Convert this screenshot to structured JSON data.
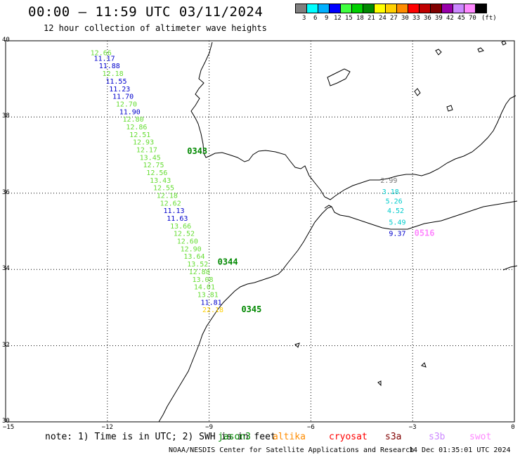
{
  "header": {
    "title": "00:00 – 11:59 UTC 03/11/2024",
    "subtitle": "12 hour collection of altimeter wave heights"
  },
  "colorbar": {
    "colors": [
      "#7f7f7f",
      "#00ffff",
      "#00b0ff",
      "#0000ff",
      "#40ff40",
      "#00d000",
      "#008800",
      "#ffff00",
      "#ffd000",
      "#ff8c00",
      "#ff0000",
      "#c00000",
      "#800000",
      "#9900aa",
      "#cc88ff",
      "#ff88ff",
      "#000000"
    ],
    "labels": [
      "3",
      "6",
      "9",
      "12",
      "15",
      "18",
      "21",
      "24",
      "27",
      "30",
      "33",
      "36",
      "39",
      "42",
      "45",
      "70",
      "(ft)"
    ]
  },
  "axes": {
    "lat_labels": [
      "40",
      "38",
      "36",
      "34",
      "32",
      "30"
    ],
    "lon_labels": [
      "−15",
      "−12",
      "−9",
      "−6",
      "−3",
      "0"
    ],
    "lat_range": [
      30,
      40
    ],
    "lon_range": [
      -15,
      0
    ],
    "grid": "dotted"
  },
  "track1": {
    "color": "#66dd33",
    "points": [
      {
        "text": "12.66",
        "lat": 39.7,
        "lon": -12.5,
        "color": "#66dd33"
      },
      {
        "text": "11.17",
        "lat": 39.55,
        "lon": -12.4,
        "color": "#0000cc"
      },
      {
        "text": "11.88",
        "lat": 39.35,
        "lon": -12.25,
        "color": "#0000cc"
      },
      {
        "text": "12.18",
        "lat": 39.15,
        "lon": -12.15,
        "color": "#66dd33"
      },
      {
        "text": "11.55",
        "lat": 38.95,
        "lon": -12.05,
        "color": "#0000cc"
      },
      {
        "text": "11.23",
        "lat": 38.75,
        "lon": -11.95,
        "color": "#0000cc"
      },
      {
        "text": "11.70",
        "lat": 38.55,
        "lon": -11.85,
        "color": "#0000cc"
      },
      {
        "text": "12.70",
        "lat": 38.35,
        "lon": -11.75,
        "color": "#66dd33"
      },
      {
        "text": "11.90",
        "lat": 38.15,
        "lon": -11.65,
        "color": "#0000cc"
      },
      {
        "text": "12.80",
        "lat": 37.95,
        "lon": -11.55,
        "color": "#66dd33"
      },
      {
        "text": "12.86",
        "lat": 37.75,
        "lon": -11.45,
        "color": "#66dd33"
      },
      {
        "text": "12.51",
        "lat": 37.55,
        "lon": -11.35,
        "color": "#66dd33"
      },
      {
        "text": "12.93",
        "lat": 37.35,
        "lon": -11.25,
        "color": "#66dd33"
      },
      {
        "text": "12.17",
        "lat": 37.15,
        "lon": -11.15,
        "color": "#66dd33"
      },
      {
        "text": "13.45",
        "lat": 36.95,
        "lon": -11.05,
        "color": "#66dd33"
      },
      {
        "text": "12.75",
        "lat": 36.75,
        "lon": -10.95,
        "color": "#66dd33"
      },
      {
        "text": "12.56",
        "lat": 36.55,
        "lon": -10.85,
        "color": "#66dd33"
      },
      {
        "text": "13.43",
        "lat": 36.35,
        "lon": -10.75,
        "color": "#66dd33"
      },
      {
        "text": "12.55",
        "lat": 36.15,
        "lon": -10.65,
        "color": "#66dd33"
      },
      {
        "text": "12.18",
        "lat": 35.95,
        "lon": -10.55,
        "color": "#66dd33"
      },
      {
        "text": "12.62",
        "lat": 35.75,
        "lon": -10.45,
        "color": "#66dd33"
      },
      {
        "text": "11.13",
        "lat": 35.55,
        "lon": -10.35,
        "color": "#0000cc"
      },
      {
        "text": "11.63",
        "lat": 35.35,
        "lon": -10.25,
        "color": "#0000cc"
      },
      {
        "text": "13.66",
        "lat": 35.15,
        "lon": -10.15,
        "color": "#66dd33"
      },
      {
        "text": "12.52",
        "lat": 34.95,
        "lon": -10.05,
        "color": "#66dd33"
      },
      {
        "text": "12.60",
        "lat": 34.75,
        "lon": -9.95,
        "color": "#66dd33"
      },
      {
        "text": "12.90",
        "lat": 34.55,
        "lon": -9.85,
        "color": "#66dd33"
      },
      {
        "text": "13.64",
        "lat": 34.35,
        "lon": -9.75,
        "color": "#66dd33"
      },
      {
        "text": "13.52",
        "lat": 34.15,
        "lon": -9.65,
        "color": "#66dd33"
      },
      {
        "text": "12.88",
        "lat": 33.95,
        "lon": -9.6,
        "color": "#66dd33"
      },
      {
        "text": "13.08",
        "lat": 33.75,
        "lon": -9.5,
        "color": "#66dd33"
      },
      {
        "text": "14.01",
        "lat": 33.55,
        "lon": -9.45,
        "color": "#66dd33"
      },
      {
        "text": "13.81",
        "lat": 33.35,
        "lon": -9.35,
        "color": "#66dd33"
      },
      {
        "text": "11.81",
        "lat": 33.15,
        "lon": -9.25,
        "color": "#0000cc"
      },
      {
        "text": "22.18",
        "lat": 32.95,
        "lon": -9.2,
        "color": "#ffd000"
      }
    ],
    "times": [
      {
        "text": "0343",
        "lat": 37.1,
        "lon": -9.65
      },
      {
        "text": "0344",
        "lat": 34.2,
        "lon": -8.75
      },
      {
        "text": "0345",
        "lat": 32.95,
        "lon": -8.05
      }
    ]
  },
  "track2": {
    "points": [
      {
        "text": "2.99",
        "lat": 36.35,
        "lon": -3.95,
        "color": "#777777"
      },
      {
        "text": "3.18",
        "lat": 36.05,
        "lon": -3.9,
        "color": "#00cccc"
      },
      {
        "text": "5.26",
        "lat": 35.8,
        "lon": -3.8,
        "color": "#00cccc"
      },
      {
        "text": "4.52",
        "lat": 35.55,
        "lon": -3.75,
        "color": "#00cccc"
      },
      {
        "text": "5.49",
        "lat": 35.25,
        "lon": -3.7,
        "color": "#00cccc"
      },
      {
        "text": "9.37",
        "lat": 34.95,
        "lon": -3.7,
        "color": "#0000cc"
      }
    ],
    "times": [
      {
        "text": "0516",
        "lat": 34.95,
        "lon": -2.95,
        "color": "#ff88ff"
      }
    ]
  },
  "footer": {
    "note": "note:  1) Time is in UTC; 2) SWH is in feet",
    "satellites": [
      {
        "name": "jason3",
        "color": "#008800"
      },
      {
        "name": "altika",
        "color": "#ff8c00"
      },
      {
        "name": "cryosat",
        "color": "#ff0000"
      },
      {
        "name": "s3a",
        "color": "#800000"
      },
      {
        "name": "s3b",
        "color": "#cc88ff"
      },
      {
        "name": "swot",
        "color": "#ff88ff"
      }
    ],
    "credit": "NOAA/NESDIS Center for Satellite Applications and Research",
    "timestamp": "14 Dec 01:35:01 UTC 2024"
  }
}
